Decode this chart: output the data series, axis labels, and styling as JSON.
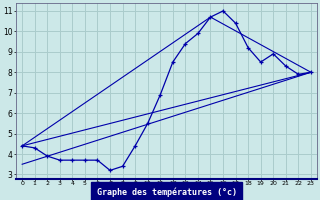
{
  "xlabel": "Graphe des températures (°c)",
  "background_color": "#cce8e8",
  "grid_color": "#aacccc",
  "line_color": "#0000aa",
  "xlim": [
    -0.5,
    23.5
  ],
  "ylim": [
    2.8,
    11.4
  ],
  "xticks": [
    0,
    1,
    2,
    3,
    4,
    5,
    6,
    7,
    8,
    9,
    10,
    11,
    12,
    13,
    14,
    15,
    16,
    17,
    18,
    19,
    20,
    21,
    22,
    23
  ],
  "yticks": [
    3,
    4,
    5,
    6,
    7,
    8,
    9,
    10,
    11
  ],
  "main_x": [
    0,
    1,
    2,
    3,
    4,
    5,
    6,
    7,
    8,
    9,
    10,
    11,
    12,
    13,
    14,
    15,
    16,
    17,
    18,
    19,
    20,
    21,
    22,
    23
  ],
  "main_y": [
    4.4,
    4.3,
    3.9,
    3.7,
    3.7,
    3.7,
    3.7,
    3.2,
    3.4,
    4.4,
    5.5,
    6.9,
    8.5,
    9.4,
    9.9,
    10.7,
    11.0,
    10.4,
    9.2,
    8.5,
    8.9,
    8.3,
    7.9,
    8.0
  ],
  "trend1_x": [
    0,
    23
  ],
  "trend1_y": [
    4.4,
    8.0
  ],
  "trend2_x": [
    0,
    15,
    23
  ],
  "trend2_y": [
    4.4,
    10.7,
    8.0
  ],
  "trend3_x": [
    0,
    23
  ],
  "trend3_y": [
    3.5,
    8.0
  ]
}
